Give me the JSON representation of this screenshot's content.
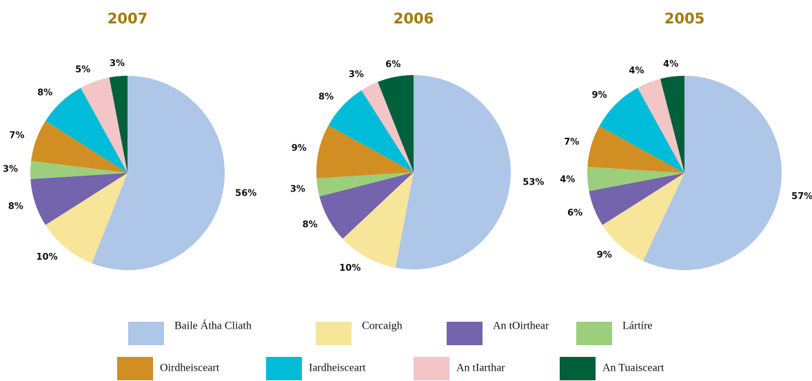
{
  "categories": [
    "Baile Átha Cliath",
    "Corcaigh",
    "An tOirthear",
    "Lártíre",
    "Oirdheisceart",
    "Iardheisceart",
    "An tIarthar",
    "An Tuaisceart"
  ],
  "colors": [
    "#aec6e8",
    "#f7e59a",
    "#7463ad",
    "#9ccf7c",
    "#d18e22",
    "#00bcd8",
    "#f3c5c6",
    "#006039"
  ],
  "chart_data": [
    {
      "type": "pie",
      "title": "2007",
      "values": [
        56,
        10,
        8,
        3,
        7,
        8,
        5,
        3
      ],
      "value_labels": [
        "56%",
        "10%",
        "8%",
        "3%",
        "7%",
        "8%",
        "5%",
        "3%"
      ]
    },
    {
      "type": "pie",
      "title": "2006",
      "values": [
        53,
        10,
        8,
        3,
        9,
        8,
        3,
        6
      ],
      "value_labels": [
        "53%",
        "10%",
        "8%",
        "3%",
        "9%",
        "8%",
        "3%",
        "6%"
      ]
    },
    {
      "type": "pie",
      "title": "2005",
      "values": [
        57,
        9,
        6,
        4,
        7,
        9,
        4,
        4
      ],
      "value_labels": [
        "57%",
        "9%",
        "6%",
        "4%",
        "7%",
        "9%",
        "4%",
        "4%"
      ]
    }
  ]
}
